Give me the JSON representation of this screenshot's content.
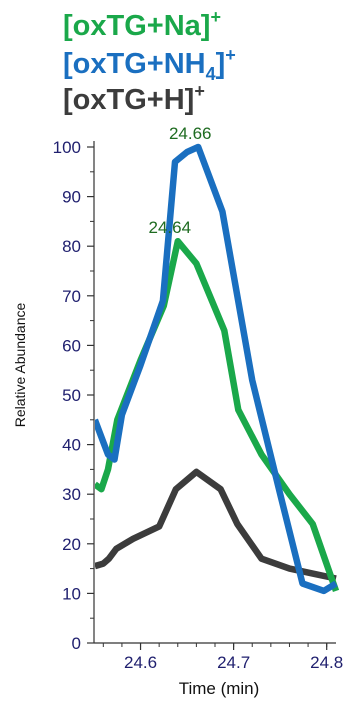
{
  "chart_data": {
    "type": "line",
    "xlabel": "Time (min)",
    "ylabel": "Relative Abundance",
    "xlim": [
      24.55,
      24.81
    ],
    "ylim": [
      0,
      100
    ],
    "x_ticks": [
      24.6,
      24.7,
      24.8
    ],
    "x_tick_labels": [
      "24.6",
      "24.7",
      "24.8"
    ],
    "y_ticks": [
      0,
      10,
      20,
      30,
      40,
      50,
      60,
      70,
      80,
      90,
      100
    ],
    "y_tick_labels": [
      "0",
      "10",
      "20",
      "30",
      "40",
      "50",
      "60",
      "70",
      "80",
      "90",
      "100"
    ],
    "legend": [
      {
        "base": "[oxTG+Na]",
        "sub": "",
        "sup": "+",
        "color": "#1aa84a"
      },
      {
        "base": "[oxTG+NH",
        "sub": "4",
        "close": "]",
        "sup": "+",
        "color": "#1a6fc0"
      },
      {
        "base": "[oxTG+H]",
        "sub": "",
        "sup": "+",
        "color": "#3c3c3c"
      }
    ],
    "series": [
      {
        "color": "#1a6fc0",
        "x": [
          24.551,
          24.557,
          24.565,
          24.572,
          24.58,
          24.6,
          24.624,
          24.637,
          24.65,
          24.662,
          24.688,
          24.72,
          24.75,
          24.774,
          24.797,
          24.81
        ],
        "y": [
          45,
          42,
          38,
          37,
          46,
          56,
          69,
          97,
          99,
          100,
          87,
          53,
          30,
          12,
          10.5,
          12
        ]
      },
      {
        "color": "#1aa84a",
        "x": [
          24.551,
          24.558,
          24.565,
          24.575,
          24.6,
          24.625,
          24.64,
          24.66,
          24.69,
          24.705,
          24.73,
          24.76,
          24.785,
          24.81
        ],
        "y": [
          32,
          31,
          35,
          45,
          57,
          68,
          81,
          76.5,
          63,
          47,
          38,
          30,
          24,
          10.5
        ]
      },
      {
        "color": "#3c3c3c",
        "x": [
          24.551,
          24.56,
          24.566,
          24.574,
          24.592,
          24.62,
          24.638,
          24.66,
          24.686,
          24.704,
          24.73,
          24.76,
          24.785,
          24.81
        ],
        "y": [
          15.5,
          16,
          17,
          19,
          21,
          23.5,
          31,
          34.5,
          31,
          24,
          17,
          15,
          14,
          13
        ]
      }
    ],
    "annotations": [
      {
        "text": "24.66",
        "x": 24.662,
        "y": 100,
        "color": "#1e6b20"
      },
      {
        "text": "24.64",
        "x": 24.64,
        "y": 81,
        "color": "#1e6b20"
      }
    ]
  }
}
